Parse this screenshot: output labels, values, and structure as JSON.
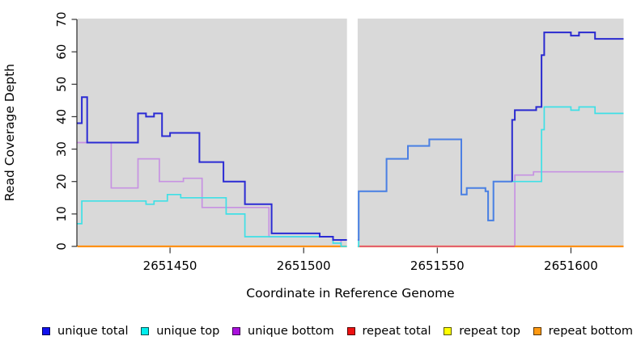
{
  "chart_data": {
    "type": "line",
    "subtype": "step-coverage",
    "title": "",
    "xlabel": "Coordinate in Reference Genome",
    "ylabel": "Read Coverage Depth",
    "xlim": [
      2651415.3,
      2651619.7
    ],
    "ylim": [
      0,
      70
    ],
    "x_ticks": [
      2651450,
      2651500,
      2651550,
      2651600
    ],
    "y_ticks": [
      0,
      10,
      20,
      30,
      40,
      50,
      60,
      70
    ],
    "grid": false,
    "plot_background": "#d9d9d9",
    "page_background": "#ffffff",
    "gap_region": {
      "from": 2651516.2,
      "to": 2651520.2,
      "color": "#ffffff"
    },
    "legend_position": "bottom",
    "legend": [
      {
        "label": "unique total",
        "color": "#1111ee"
      },
      {
        "label": "unique top",
        "color": "#00eeee"
      },
      {
        "label": "unique bottom",
        "color": "#aa11dd"
      },
      {
        "label": "repeat total",
        "color": "#ee1111"
      },
      {
        "label": "repeat top",
        "color": "#ffff00"
      },
      {
        "label": "repeat bottom",
        "color": "#ff9911"
      }
    ],
    "series": [
      {
        "name": "unique bottom",
        "color": "#c792e2",
        "width": 1.7,
        "points": [
          [
            2651415.3,
            32
          ],
          [
            2651428,
            18
          ],
          [
            2651438,
            27
          ],
          [
            2651446,
            20
          ],
          [
            2651455,
            21
          ],
          [
            2651462,
            12
          ],
          [
            2651487,
            3
          ],
          [
            2651511,
            2
          ],
          [
            2651514,
            0
          ],
          [
            2651579,
            22
          ],
          [
            2651586,
            23
          ],
          [
            2651619.7,
            23
          ]
        ]
      },
      {
        "name": "repeat total",
        "color": "#ee2222",
        "width": 1.6,
        "points": [
          [
            2651415.3,
            0
          ],
          [
            2651619.7,
            0
          ]
        ]
      },
      {
        "name": "repeat top",
        "color": "#ffff00",
        "width": 1.6,
        "points": [
          [
            2651415.3,
            0
          ],
          [
            2651619.7,
            0
          ]
        ]
      },
      {
        "name": "repeat bottom",
        "color": "#ff9015",
        "width": 2.2,
        "points": [
          [
            2651415.3,
            0
          ],
          [
            2651619.7,
            0
          ]
        ]
      },
      {
        "name": "repeat total over unique bottom (zero overlay)",
        "color": "#e05a78",
        "width": 1.8,
        "points": [
          [
            2651520.6,
            0
          ],
          [
            2651579,
            0
          ]
        ]
      },
      {
        "name": "unique top",
        "color": "#3fe0e6",
        "width": 1.7,
        "points": [
          [
            2651415.3,
            7
          ],
          [
            2651417,
            14
          ],
          [
            2651441,
            13
          ],
          [
            2651444,
            14
          ],
          [
            2651449,
            16
          ],
          [
            2651454,
            15
          ],
          [
            2651471,
            10
          ],
          [
            2651478,
            3
          ],
          [
            2651511,
            1
          ],
          [
            2651514,
            0
          ],
          [
            2651520.6,
            17
          ],
          [
            2651531,
            27
          ],
          [
            2651539,
            31
          ],
          [
            2651547,
            33
          ],
          [
            2651559,
            16
          ],
          [
            2651561,
            18
          ],
          [
            2651568,
            17
          ],
          [
            2651569,
            8
          ],
          [
            2651571,
            20
          ],
          [
            2651589,
            36
          ],
          [
            2651590,
            43
          ],
          [
            2651600,
            42
          ],
          [
            2651603,
            43
          ],
          [
            2651609,
            41
          ],
          [
            2651619.7,
            41
          ]
        ]
      },
      {
        "name": "unique total",
        "color": "#2b2bd4",
        "width": 2,
        "points": [
          [
            2651415.3,
            38
          ],
          [
            2651417,
            46
          ],
          [
            2651419,
            32
          ],
          [
            2651438,
            41
          ],
          [
            2651441,
            40
          ],
          [
            2651444,
            41
          ],
          [
            2651447,
            34
          ],
          [
            2651450,
            35
          ],
          [
            2651461,
            26
          ],
          [
            2651470,
            20
          ],
          [
            2651478,
            13
          ],
          [
            2651488,
            4
          ],
          [
            2651506,
            3
          ],
          [
            2651511,
            2
          ],
          [
            2651520.6,
            17
          ],
          [
            2651531,
            27
          ],
          [
            2651539,
            31
          ],
          [
            2651547,
            33
          ],
          [
            2651559,
            16
          ],
          [
            2651561,
            18
          ],
          [
            2651568,
            17
          ],
          [
            2651569,
            8
          ],
          [
            2651571,
            20
          ],
          [
            2651578,
            39
          ],
          [
            2651579,
            42
          ],
          [
            2651587,
            43
          ],
          [
            2651589,
            59
          ],
          [
            2651590,
            66
          ],
          [
            2651600,
            65
          ],
          [
            2651603,
            66
          ],
          [
            2651609,
            64
          ],
          [
            2651619.7,
            64
          ]
        ],
        "color_segments": [
          {
            "to": 2651519,
            "color": "#2b2bd4"
          },
          {
            "to": 2651578,
            "color": "#4c7fe3"
          },
          {
            "to": 2651619.7,
            "color": "#2a2ad0"
          }
        ]
      }
    ]
  }
}
